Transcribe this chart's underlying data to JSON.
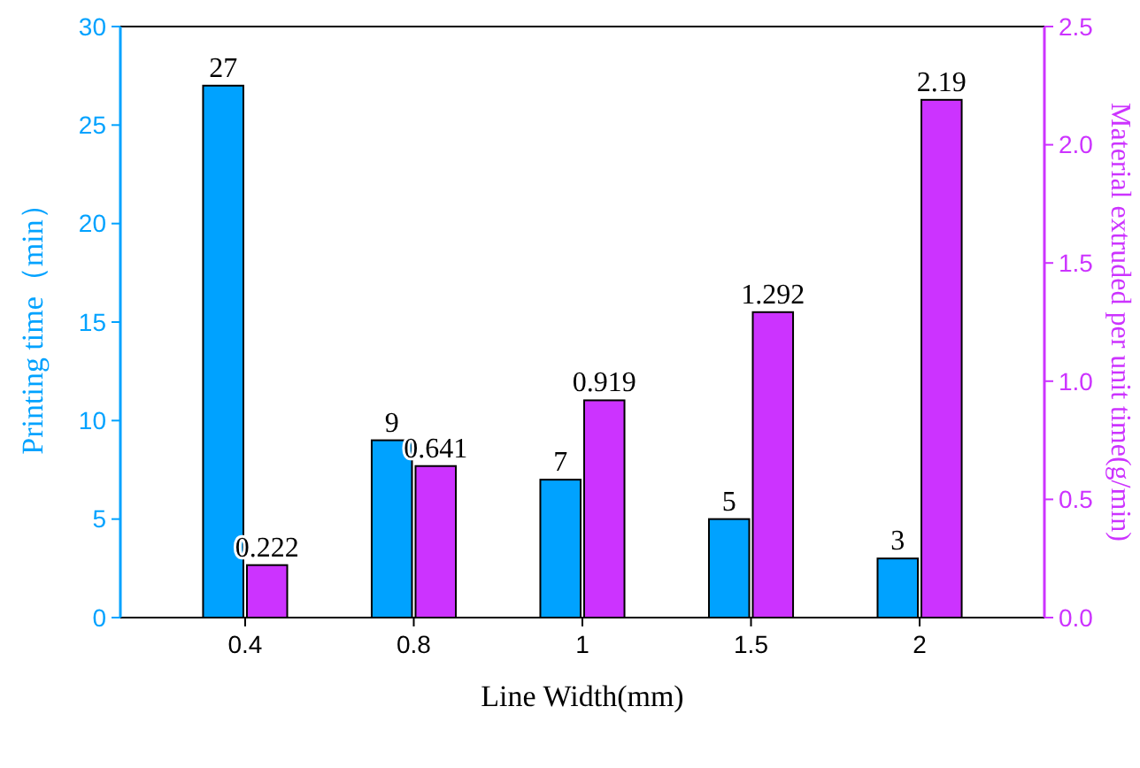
{
  "chart_data": {
    "type": "bar",
    "xlabel": "Line Width(mm)",
    "ylabel": "Printing time（min）",
    "y2label": "Material extruded per unit time(g/min)",
    "categories": [
      "0.4",
      "0.8",
      "1",
      "1.5",
      "2"
    ],
    "series": [
      {
        "color": "#00a2ff",
        "values": [
          27,
          9,
          7,
          5,
          3
        ]
      },
      {
        "color": "#cc33ff",
        "values": [
          0.222,
          0.641,
          0.919,
          1.292,
          2.19
        ],
        "axis": "y2"
      }
    ],
    "ylim": [
      0,
      30
    ],
    "yticks": [
      0,
      5,
      10,
      15,
      20,
      25,
      30
    ],
    "y2lim": [
      0,
      2.5
    ],
    "y2ticks": [
      {
        "value": 0,
        "label": "0.0"
      },
      {
        "value": 0.5,
        "label": "0.5"
      },
      {
        "value": 1,
        "label": "1.0"
      },
      {
        "value": 1.5,
        "label": "1.5"
      },
      {
        "value": 2,
        "label": "2.0"
      },
      {
        "value": 2.5,
        "label": "2.5"
      }
    ],
    "data_labels": true
  }
}
